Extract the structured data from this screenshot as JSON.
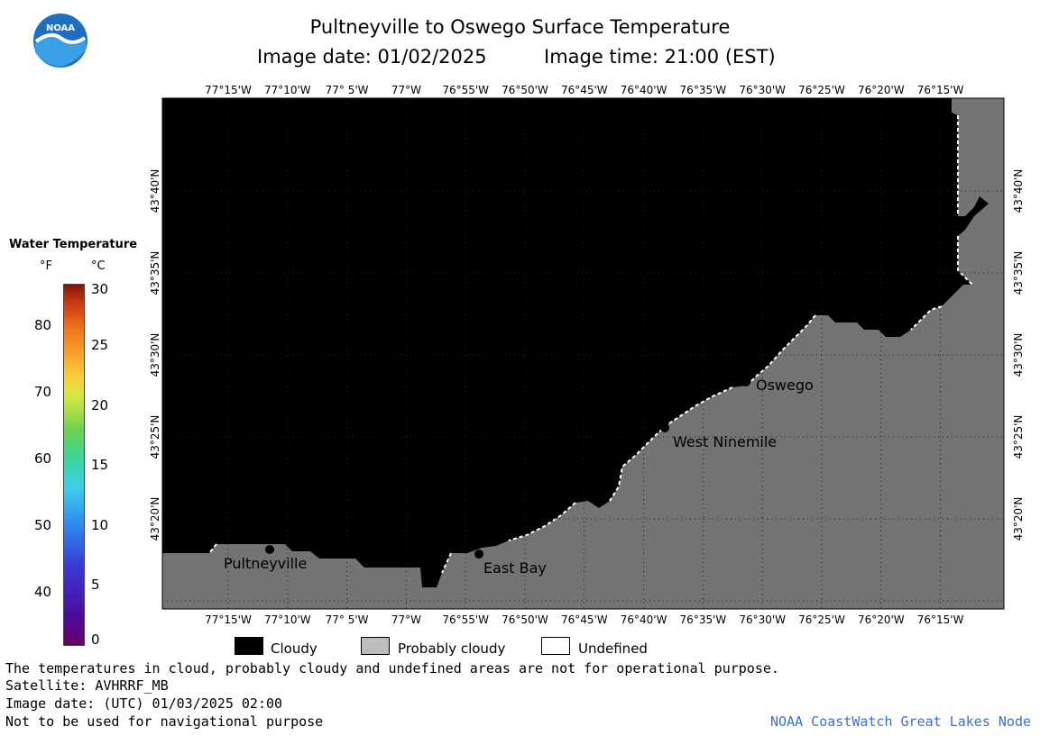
{
  "header": {
    "title": "Pultneyville to Oswego Surface Temperature",
    "subtitle_date": "Image date: 01/02/2025",
    "subtitle_time": "Image time: 21:00 (EST)"
  },
  "logo": {
    "text": "NOAA"
  },
  "legend": {
    "title": "Water Temperature",
    "unit_f": "°F",
    "unit_c": "°C",
    "f_ticks": [
      "80",
      "70",
      "60",
      "50",
      "40"
    ],
    "c_ticks": [
      "30",
      "25",
      "20",
      "15",
      "10",
      "5",
      "0"
    ]
  },
  "map": {
    "lon_labels": [
      "77°15'W",
      "77°10'W",
      "77° 5'W",
      "77°W",
      "76°55'W",
      "76°50'W",
      "76°45'W",
      "76°40'W",
      "76°35'W",
      "76°30'W",
      "76°25'W",
      "76°20'W",
      "76°15'W"
    ],
    "lat_labels": [
      "43°40'N",
      "43°35'N",
      "43°30'N",
      "43°25'N",
      "43°20'N"
    ],
    "places": {
      "pultneyville": "Pultneyville",
      "east_bay": "East Bay",
      "west_ninemile": "West Ninemile",
      "oswego": "Oswego"
    },
    "colors": {
      "cloudy": "#000000",
      "land": "#737373",
      "probably_cloudy": "#bdbdbd",
      "undefined": "#ffffff"
    }
  },
  "key": {
    "cloudy": "Cloudy",
    "probably_cloudy": "Probably cloudy",
    "undefined": "Undefined"
  },
  "footer": {
    "line1": "The temperatures in cloud, probably cloudy and undefined areas are not for operational purpose.",
    "line2": "Satellite: AVHRRF_MB",
    "line3": "Image date: (UTC) 01/03/2025  02:00",
    "line4": "Not to be used for navigational purpose",
    "credit": "NOAA CoastWatch Great Lakes Node"
  }
}
